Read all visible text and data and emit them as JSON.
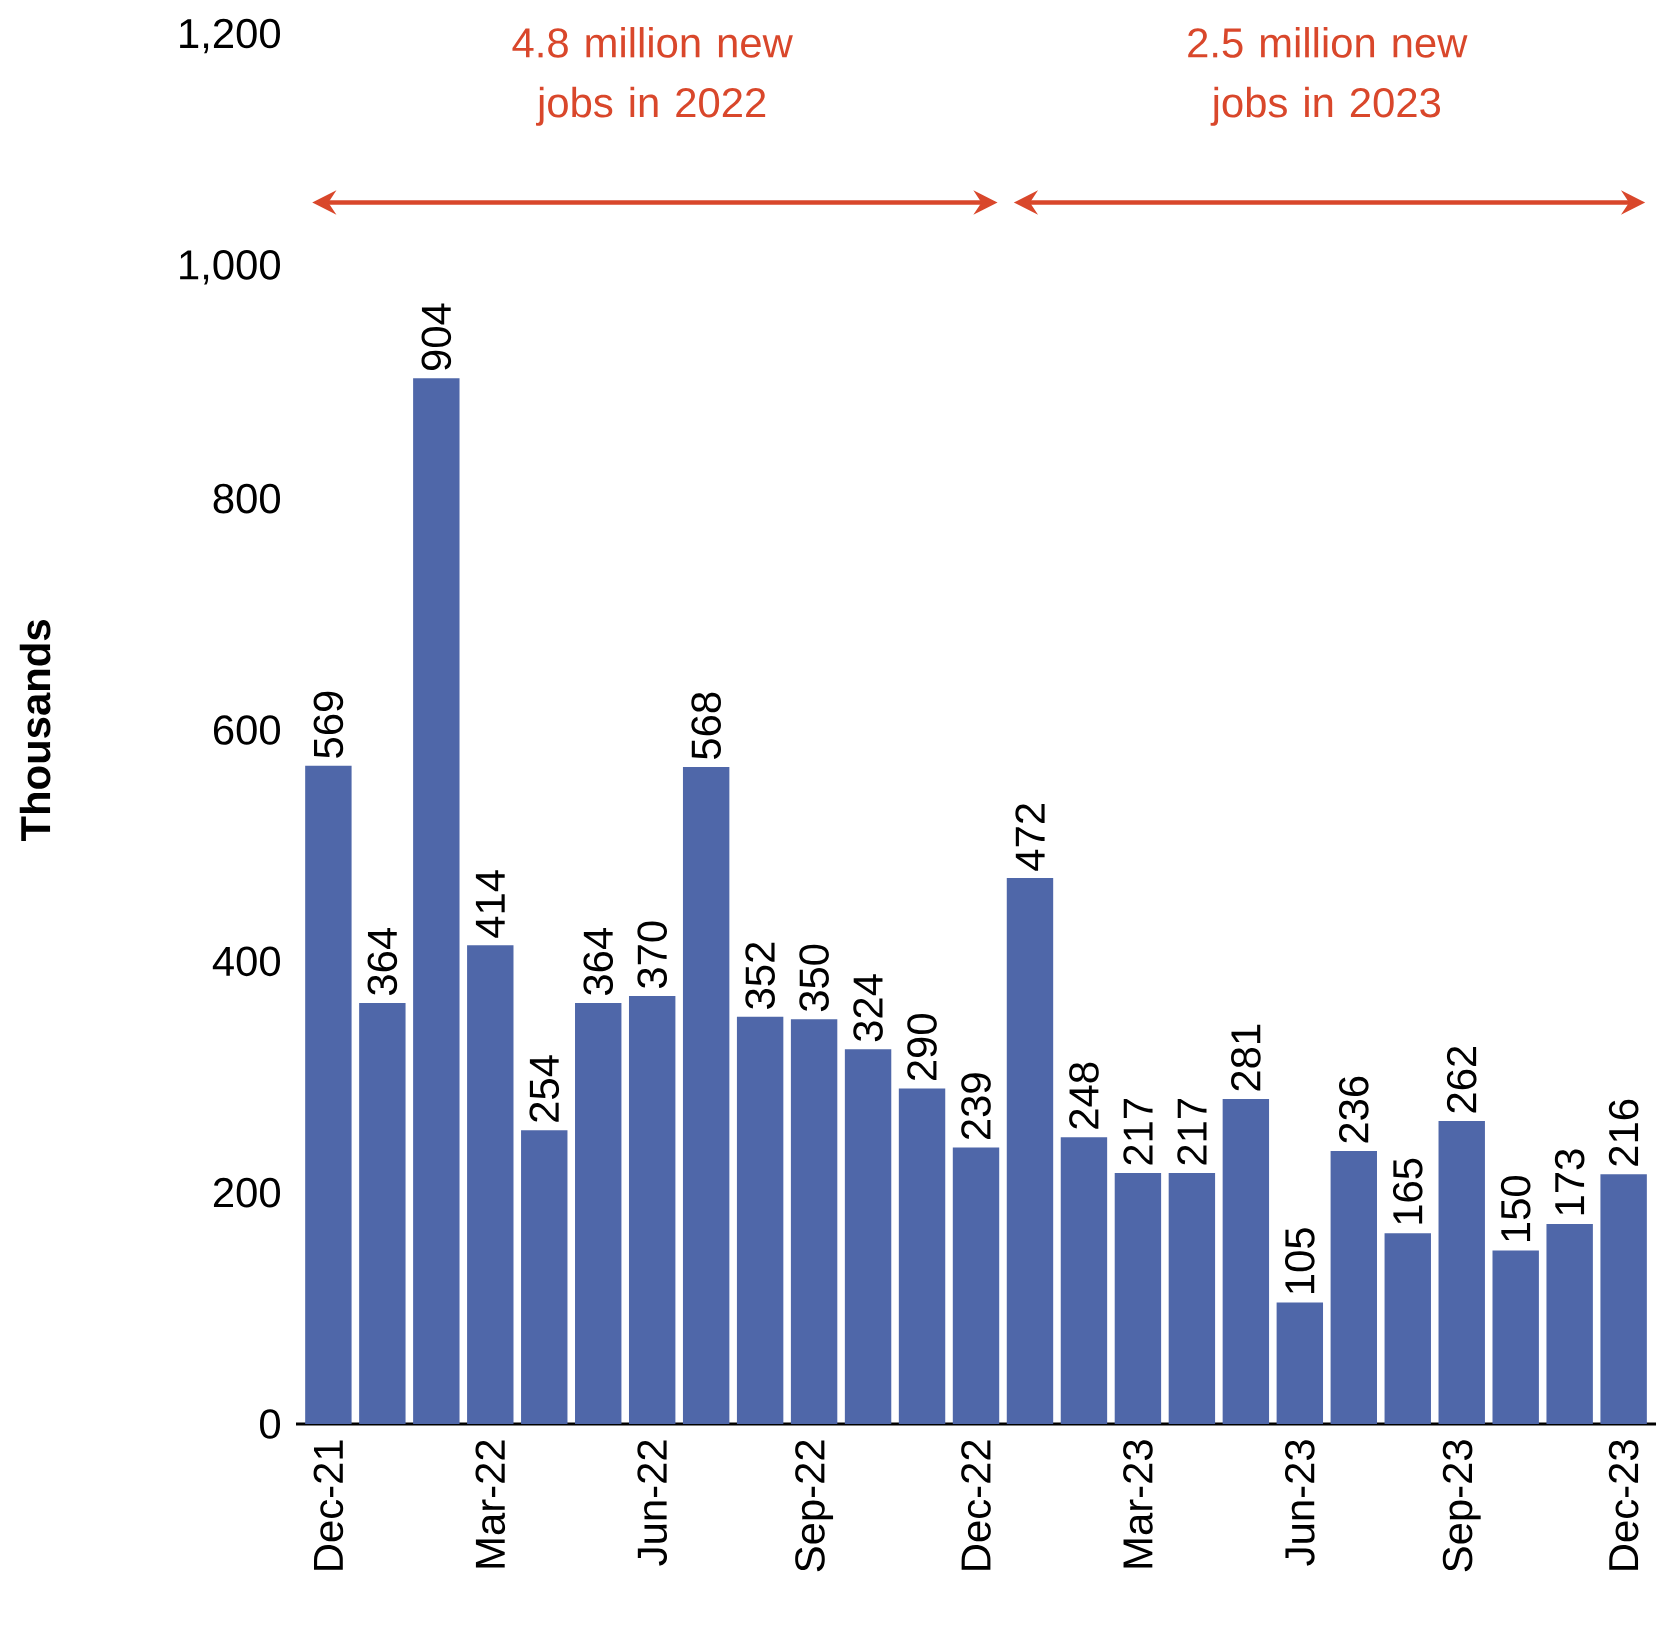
{
  "chart_data": {
    "type": "bar",
    "ylabel": "Thousands",
    "categories": [
      "Dec-21",
      null,
      null,
      "Mar-22",
      null,
      null,
      "Jun-22",
      null,
      null,
      "Sep-22",
      null,
      null,
      "Dec-22",
      null,
      null,
      "Mar-23",
      null,
      null,
      "Jun-23",
      null,
      null,
      "Sep-23",
      null,
      null,
      "Dec-23"
    ],
    "values": [
      569,
      364,
      904,
      414,
      254,
      364,
      370,
      568,
      352,
      350,
      324,
      290,
      239,
      472,
      248,
      217,
      217,
      281,
      105,
      236,
      165,
      262,
      150,
      173,
      216
    ],
    "color": "#4f67a9",
    "data_labels": true,
    "ylim": [
      0,
      1200
    ],
    "yticks": [
      0,
      200,
      400,
      600,
      800,
      {
        "value": 1000,
        "label": "1,000"
      },
      {
        "value": 1200,
        "label": "1,200"
      }
    ],
    "grid": false,
    "annotations": [
      "4.8 million new jobs in 2022",
      "2.5 million new jobs in 2023"
    ]
  }
}
